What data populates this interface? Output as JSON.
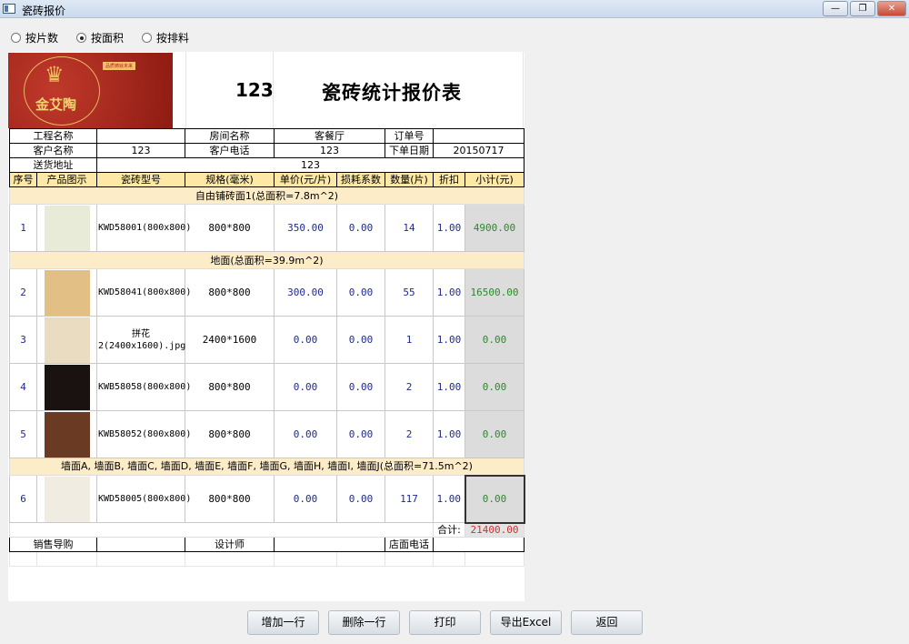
{
  "window": {
    "title": "瓷砖报价",
    "minimize": "—",
    "restore": "❐",
    "close": "✕"
  },
  "mode_options": [
    {
      "label": "按片数",
      "selected": false
    },
    {
      "label": "按面积",
      "selected": true
    },
    {
      "label": "按排料",
      "selected": false
    }
  ],
  "logo": {
    "brand": "金艾陶",
    "slogan": "品质铸就未来"
  },
  "header": {
    "number": "123",
    "title": "瓷砖统计报价表"
  },
  "info": {
    "project_label": "工程名称",
    "project_value": "",
    "room_label": "房间名称",
    "room_value": "客餐厅",
    "order_label": "订单号",
    "order_value": "",
    "customer_label": "客户名称",
    "customer_value": "123",
    "phone_label": "客户电话",
    "phone_value": "123",
    "date_label": "下单日期",
    "date_value": "20150717",
    "address_label": "送货地址",
    "address_value": "123"
  },
  "columns": [
    "序号",
    "产品图示",
    "瓷砖型号",
    "规格(毫米)",
    "单价(元/片)",
    "损耗系数",
    "数量(片)",
    "折扣",
    "小计(元)"
  ],
  "groups": [
    {
      "title": "自由铺砖面1(总面积=7.8m^2)",
      "items": [
        {
          "no": "1",
          "model": "KWD58001(800x800)",
          "spec": "800*800",
          "price": "350.00",
          "loss": "0.00",
          "qty": "14",
          "discount": "1.00",
          "subtotal": "4900.00",
          "tile_color": "#e8ebd8"
        }
      ]
    },
    {
      "title": "地面(总面积=39.9m^2)",
      "items": [
        {
          "no": "2",
          "model": "KWD58041(800x800)",
          "spec": "800*800",
          "price": "300.00",
          "loss": "0.00",
          "qty": "55",
          "discount": "1.00",
          "subtotal": "16500.00",
          "tile_color": "#e2bf84"
        },
        {
          "no": "3",
          "model": "拼花2(2400x1600).jpg",
          "spec": "2400*1600",
          "price": "0.00",
          "loss": "0.00",
          "qty": "1",
          "discount": "1.00",
          "subtotal": "0.00",
          "tile_color": "#e9dcc0"
        },
        {
          "no": "4",
          "model": "KWB58058(800x800)",
          "spec": "800*800",
          "price": "0.00",
          "loss": "0.00",
          "qty": "2",
          "discount": "1.00",
          "subtotal": "0.00",
          "tile_color": "#1a1210"
        },
        {
          "no": "5",
          "model": "KWB58052(800x800)",
          "spec": "800*800",
          "price": "0.00",
          "loss": "0.00",
          "qty": "2",
          "discount": "1.00",
          "subtotal": "0.00",
          "tile_color": "#6b3a22"
        }
      ]
    },
    {
      "title": "墙面A, 墙面B, 墙面C, 墙面D, 墙面E, 墙面F, 墙面G, 墙面H, 墙面I, 墙面J(总面积=71.5m^2)",
      "items": [
        {
          "no": "6",
          "model": "KWD58005(800x800)",
          "spec": "800*800",
          "price": "0.00",
          "loss": "0.00",
          "qty": "117",
          "discount": "1.00",
          "subtotal": "0.00",
          "tile_color": "#f1ece2",
          "selected": true
        }
      ]
    }
  ],
  "total": {
    "label": "合计:",
    "value": "21400.00"
  },
  "footer": {
    "sales_label": "销售导购",
    "sales_value": "",
    "designer_label": "设计师",
    "designer_value": "",
    "store_phone_label": "店面电话",
    "store_phone_value": ""
  },
  "buttons": {
    "add_row": "增加一行",
    "delete_row": "删除一行",
    "print": "打印",
    "export": "导出Excel",
    "back": "返回"
  }
}
